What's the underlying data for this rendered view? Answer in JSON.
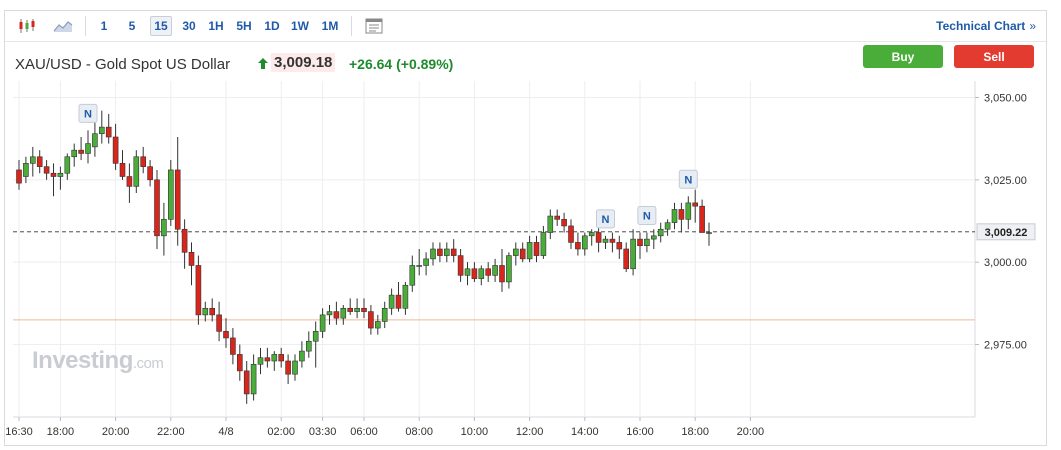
{
  "toolbar": {
    "icons": [
      "candlestick-icon",
      "area-chart-icon",
      "indicator-panel-icon"
    ],
    "timeframes": [
      "1",
      "5",
      "15",
      "30",
      "1H",
      "5H",
      "1D",
      "1W",
      "1M"
    ],
    "active_timeframe": "15",
    "technical_chart_label": "Technical Chart",
    "technical_chart_chevron": "»"
  },
  "header": {
    "symbol": "XAU/USD - Gold Spot US Dollar",
    "price": "3,009.18",
    "change": "+26.64",
    "change_pct": "(+0.89%)",
    "direction": "up"
  },
  "buttons": {
    "buy": "Buy",
    "sell": "Sell"
  },
  "watermark": {
    "main": "Investing",
    "suffix": ".com"
  },
  "colors": {
    "up": "#4aad3a",
    "down": "#d9261c",
    "accent": "#1f5aa8",
    "current_line": "#333333",
    "prev_close_line": "#f3b79c"
  },
  "chart_data": {
    "type": "candlestick",
    "y_ticks": [
      "3,050.00",
      "3,025.00",
      "3,000.00",
      "2,975.00"
    ],
    "y_tick_values": [
      3050,
      3025,
      3000,
      2975
    ],
    "ylim": [
      2953,
      3055
    ],
    "x_ticks": [
      {
        "label": "16:30",
        "index": 0
      },
      {
        "label": "18:00",
        "index": 6
      },
      {
        "label": "20:00",
        "index": 14
      },
      {
        "label": "22:00",
        "index": 22
      },
      {
        "label": "4/8",
        "index": 30
      },
      {
        "label": "02:00",
        "index": 38
      },
      {
        "label": "03:30",
        "index": 44
      },
      {
        "label": "06:00",
        "index": 50
      },
      {
        "label": "08:00",
        "index": 58
      },
      {
        "label": "10:00",
        "index": 66
      },
      {
        "label": "12:00",
        "index": 74
      },
      {
        "label": "14:00",
        "index": 82
      },
      {
        "label": "16:00",
        "index": 90
      },
      {
        "label": "18:00",
        "index": 98
      },
      {
        "label": "20:00",
        "index": 106
      }
    ],
    "current_price": 3009.22,
    "current_price_label": "3,009.22",
    "previous_close": 2982.5,
    "news_markers": [
      {
        "index": 10,
        "label": "N"
      },
      {
        "index": 85,
        "label": "N"
      },
      {
        "index": 91,
        "label": "N"
      },
      {
        "index": 97,
        "label": "N"
      }
    ],
    "candles": [
      [
        3028,
        3031,
        3022,
        3024
      ],
      [
        3026,
        3032,
        3024,
        3030
      ],
      [
        3030,
        3035,
        3026,
        3032
      ],
      [
        3032,
        3034,
        3027,
        3029
      ],
      [
        3029,
        3031,
        3025,
        3027
      ],
      [
        3027,
        3030,
        3020,
        3026
      ],
      [
        3026,
        3029,
        3022,
        3027
      ],
      [
        3027,
        3033,
        3025,
        3032
      ],
      [
        3032,
        3036,
        3029,
        3034
      ],
      [
        3034,
        3038,
        3031,
        3033
      ],
      [
        3033,
        3040,
        3030,
        3036
      ],
      [
        3035,
        3043,
        3032,
        3039
      ],
      [
        3039,
        3046,
        3036,
        3041
      ],
      [
        3041,
        3045,
        3036,
        3038
      ],
      [
        3038,
        3042,
        3028,
        3030
      ],
      [
        3030,
        3034,
        3025,
        3026
      ],
      [
        3026,
        3030,
        3018,
        3023
      ],
      [
        3023,
        3034,
        3021,
        3032
      ],
      [
        3032,
        3035,
        3027,
        3029
      ],
      [
        3029,
        3031,
        3023,
        3025
      ],
      [
        3025,
        3028,
        3004,
        3008
      ],
      [
        3008,
        3018,
        3002,
        3013
      ],
      [
        3013,
        3031,
        3011,
        3028
      ],
      [
        3028,
        3038,
        3005,
        3010
      ],
      [
        3010,
        3013,
        2998,
        3003
      ],
      [
        3003,
        3006,
        2993,
        2999
      ],
      [
        2999,
        3002,
        2981,
        2984
      ],
      [
        2984,
        2988,
        2982,
        2986
      ],
      [
        2986,
        2989,
        2982,
        2984
      ],
      [
        2984,
        2988,
        2976,
        2979
      ],
      [
        2979,
        2983,
        2974,
        2977
      ],
      [
        2977,
        2980,
        2969,
        2972
      ],
      [
        2972,
        2975,
        2964,
        2967
      ],
      [
        2967,
        2970,
        2957,
        2960
      ],
      [
        2960,
        2972,
        2958,
        2969
      ],
      [
        2969,
        2974,
        2966,
        2971
      ],
      [
        2971,
        2974,
        2968,
        2970
      ],
      [
        2970,
        2973,
        2967,
        2972
      ],
      [
        2972,
        2974,
        2968,
        2970
      ],
      [
        2970,
        2972,
        2963,
        2966
      ],
      [
        2966,
        2972,
        2964,
        2970
      ],
      [
        2970,
        2976,
        2968,
        2973
      ],
      [
        2973,
        2979,
        2971,
        2976
      ],
      [
        2976,
        2982,
        2968,
        2979
      ],
      [
        2979,
        2986,
        2977,
        2984
      ],
      [
        2984,
        2987,
        2981,
        2985
      ],
      [
        2985,
        2988,
        2981,
        2983
      ],
      [
        2983,
        2987,
        2981,
        2986
      ],
      [
        2986,
        2989,
        2984,
        2985
      ],
      [
        2985,
        2989,
        2983,
        2986
      ],
      [
        2986,
        2989,
        2983,
        2985
      ],
      [
        2985,
        2987,
        2978,
        2980
      ],
      [
        2980,
        2984,
        2978,
        2982
      ],
      [
        2982,
        2988,
        2980,
        2986
      ],
      [
        2986,
        2992,
        2984,
        2990
      ],
      [
        2990,
        2994,
        2985,
        2986
      ],
      [
        2986,
        2994,
        2984,
        2993
      ],
      [
        2993,
        3002,
        2991,
        2999
      ],
      [
        2999,
        3004,
        2996,
        2999
      ],
      [
        2999,
        3003,
        2996,
        3001
      ],
      [
        3001,
        3006,
        2999,
        3004
      ],
      [
        3004,
        3006,
        3000,
        3002
      ],
      [
        3002,
        3006,
        3000,
        3004
      ],
      [
        3004,
        3007,
        3000,
        3002
      ],
      [
        3002,
        3004,
        2994,
        2996
      ],
      [
        2996,
        3000,
        2993,
        2998
      ],
      [
        2998,
        3000,
        2994,
        2995
      ],
      [
        2995,
        2999,
        2993,
        2998
      ],
      [
        2998,
        3000,
        2994,
        2996
      ],
      [
        2996,
        3001,
        2994,
        2999
      ],
      [
        2999,
        3004,
        2991,
        2994
      ],
      [
        2994,
        3003,
        2992,
        3002
      ],
      [
        3002,
        3006,
        2999,
        3004
      ],
      [
        3004,
        3006,
        3000,
        3001
      ],
      [
        3001,
        3008,
        3000,
        3006
      ],
      [
        3006,
        3008,
        3000,
        3002
      ],
      [
        3002,
        3011,
        3001,
        3009
      ],
      [
        3009,
        3016,
        3007,
        3014
      ],
      [
        3014,
        3016,
        3011,
        3013
      ],
      [
        3013,
        3015,
        3009,
        3011
      ],
      [
        3011,
        3013,
        3004,
        3006
      ],
      [
        3006,
        3009,
        3002,
        3004
      ],
      [
        3004,
        3009,
        3002,
        3008
      ],
      [
        3008,
        3010,
        3005,
        3009
      ],
      [
        3009,
        3011,
        3003,
        3006
      ],
      [
        3006,
        3008,
        3004,
        3007
      ],
      [
        3007,
        3009,
        3003,
        3006
      ],
      [
        3006,
        3008,
        3001,
        3004
      ],
      [
        3004,
        3006,
        2997,
        2998
      ],
      [
        2998,
        3010,
        2996,
        3007
      ],
      [
        3007,
        3009,
        3001,
        3005
      ],
      [
        3005,
        3009,
        3003,
        3007
      ],
      [
        3007,
        3010,
        3004,
        3008
      ],
      [
        3008,
        3012,
        3006,
        3010
      ],
      [
        3010,
        3013,
        3008,
        3012
      ],
      [
        3012,
        3018,
        3010,
        3016
      ],
      [
        3016,
        3018,
        3009,
        3013
      ],
      [
        3013,
        3020,
        3010,
        3018
      ],
      [
        3018,
        3022,
        3012,
        3017
      ],
      [
        3017,
        3019,
        3010,
        3009
      ],
      [
        3009,
        3012,
        3005,
        3009
      ]
    ]
  }
}
